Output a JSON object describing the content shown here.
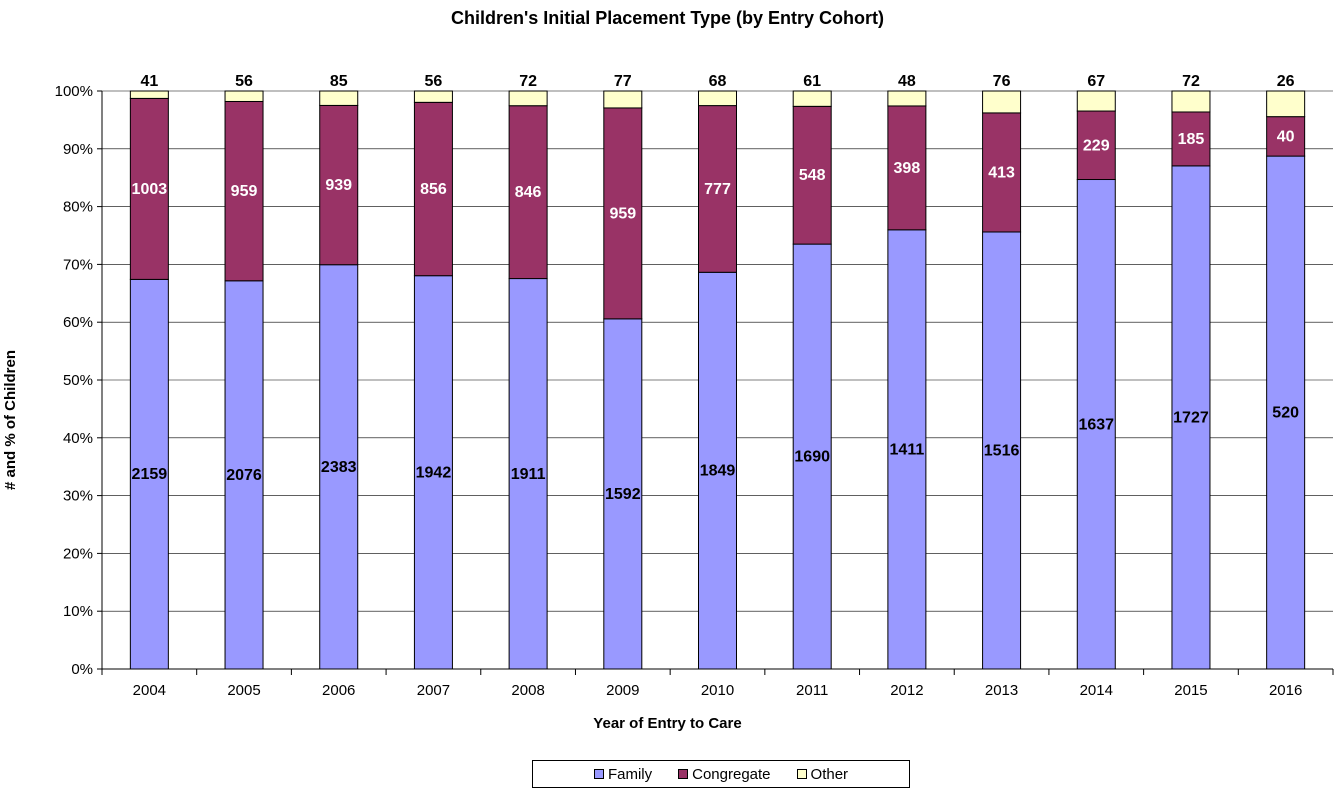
{
  "chart_data": {
    "type": "bar",
    "stacked": "percent",
    "title": "Children's Initial Placement Type (by Entry Cohort)",
    "xlabel": "Year of Entry to Care",
    "ylabel": "# and % of Children",
    "ylim": [
      0,
      100
    ],
    "yticks": [
      "0%",
      "10%",
      "20%",
      "30%",
      "40%",
      "50%",
      "60%",
      "70%",
      "80%",
      "90%",
      "100%"
    ],
    "categories": [
      "2004",
      "2005",
      "2006",
      "2007",
      "2008",
      "2009",
      "2010",
      "2011",
      "2012",
      "2013",
      "2014",
      "2015",
      "2016"
    ],
    "series": [
      {
        "name": "Family",
        "color": "#9999ff",
        "label_color": "#000000",
        "values": [
          2159,
          2076,
          2383,
          1942,
          1911,
          1592,
          1849,
          1690,
          1411,
          1516,
          1637,
          1727,
          520
        ]
      },
      {
        "name": "Congregate",
        "color": "#993366",
        "label_color": "#ffffff",
        "values": [
          1003,
          959,
          939,
          856,
          846,
          959,
          777,
          548,
          398,
          413,
          229,
          185,
          40
        ]
      },
      {
        "name": "Other",
        "color": "#ffffcc",
        "label_color": "#000000",
        "values": [
          41,
          56,
          85,
          56,
          72,
          77,
          68,
          61,
          48,
          76,
          67,
          72,
          26
        ]
      }
    ],
    "grid": true,
    "legend_position": "bottom"
  }
}
